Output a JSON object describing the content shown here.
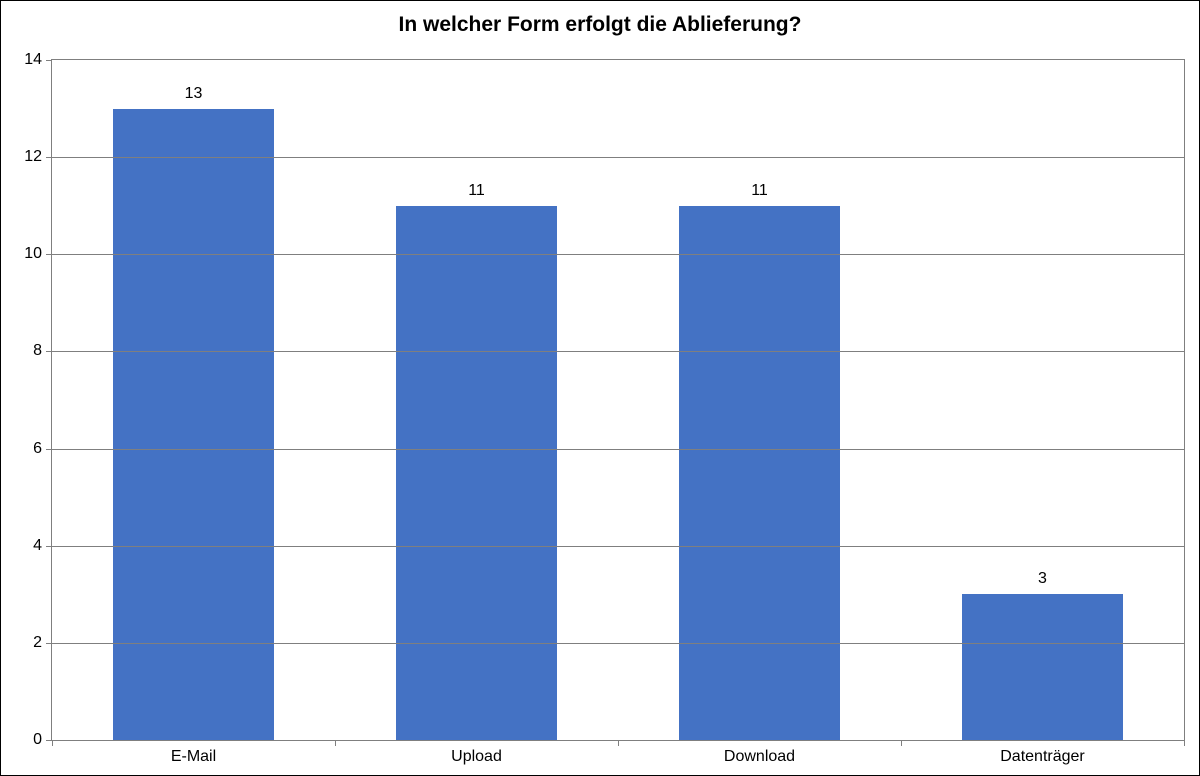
{
  "chart": {
    "type": "bar",
    "title": "In welcher Form erfolgt die Ablieferung?",
    "title_fontsize": 21,
    "title_fontweight": "bold",
    "background_color": "#ffffff",
    "border_color": "#000000",
    "plot_border_color": "#7f7f7f",
    "grid_color": "#7f7f7f",
    "label_fontsize": 16,
    "label_color": "#000000",
    "categories": [
      "E-Mail",
      "Upload",
      "Download",
      "Datenträger"
    ],
    "values": [
      13,
      11,
      11,
      3
    ],
    "bar_color": "#4472c4",
    "ylim": [
      0,
      14
    ],
    "ytick_step": 2,
    "yticks": [
      0,
      2,
      4,
      6,
      8,
      10,
      12,
      14
    ],
    "bar_width_ratio": 0.57,
    "show_value_labels": true,
    "value_label_fontsize": 16
  }
}
